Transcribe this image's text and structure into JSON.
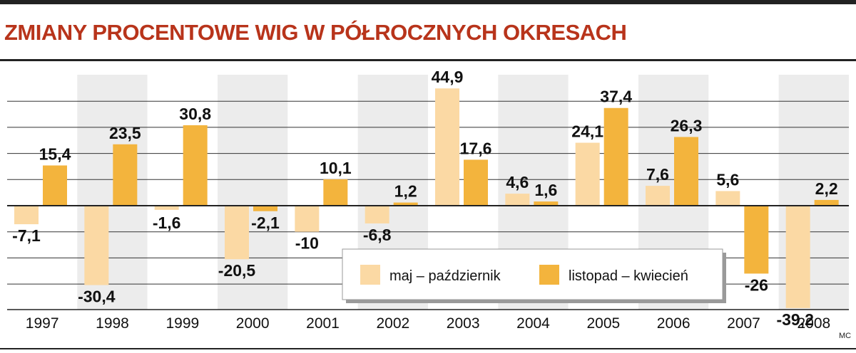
{
  "title": "ZMIANY PROCENTOWE WIG W PÓŁROCZNYCH OKRESACH",
  "credit": "MC",
  "colors": {
    "title": "#b8341b",
    "series_a": "#fbd9a4",
    "series_b": "#f3b43d",
    "stripe_light": "#ffffff",
    "stripe_dark": "#ececec",
    "grid": "#333333"
  },
  "legend": {
    "series_a_label": "maj – październik",
    "series_b_label": "listopad – kwiecień"
  },
  "chart_data": {
    "type": "bar",
    "categories": [
      "1997",
      "1998",
      "1999",
      "2000",
      "2001",
      "2002",
      "2003",
      "2004",
      "2005",
      "2006",
      "2007",
      "2008"
    ],
    "series": [
      {
        "name": "maj – październik",
        "values": [
          -7.1,
          -30.4,
          -1.6,
          -20.5,
          -10,
          -6.8,
          44.9,
          4.6,
          24.1,
          7.6,
          5.6,
          -39.2
        ],
        "labels": [
          "-7,1",
          "-30,4",
          "-1,6",
          "-20,5",
          "-10",
          "-6,8",
          "44,9",
          "4,6",
          "24,1",
          "7,6",
          "5,6",
          "-39,2"
        ]
      },
      {
        "name": "listopad – kwiecień",
        "values": [
          15.4,
          23.5,
          30.8,
          -2.1,
          10.1,
          1.2,
          17.6,
          1.6,
          37.4,
          26.3,
          -26,
          2.2
        ],
        "labels": [
          "15,4",
          "23,5",
          "30,8",
          "-2,1",
          "10,1",
          "1,2",
          "17,6",
          "1,6",
          "37,4",
          "26,3",
          "-26",
          "2,2"
        ]
      }
    ],
    "ylim": [
      -40,
      50
    ],
    "grid": true,
    "legend_position": "bottom-center"
  }
}
